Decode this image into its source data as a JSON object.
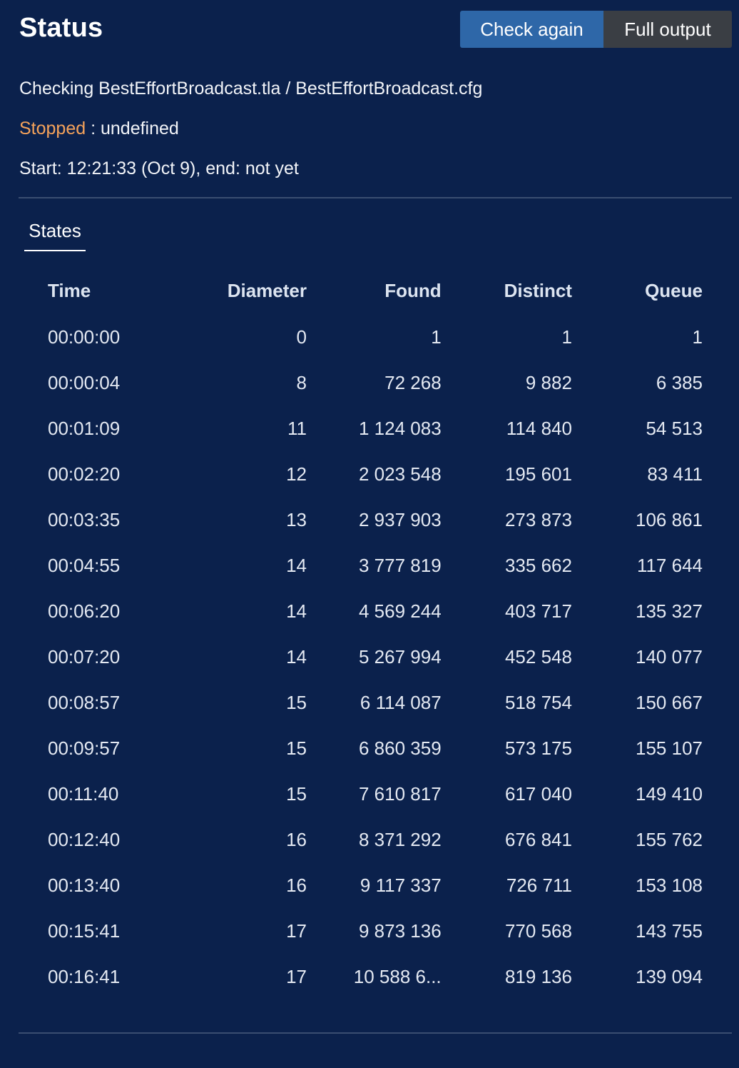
{
  "header": {
    "title": "Status",
    "check_again_label": "Check again",
    "full_output_label": "Full output"
  },
  "info": {
    "checking": "Checking BestEffortBroadcast.tla / BestEffortBroadcast.cfg",
    "status_label": "Stopped",
    "status_value": " : undefined",
    "timing": "Start: 12:21:33 (Oct 9), end: not yet"
  },
  "tabs": [
    {
      "label": "States",
      "active": true
    }
  ],
  "table": {
    "headers": {
      "time": "Time",
      "diameter": "Diameter",
      "found": "Found",
      "distinct": "Distinct",
      "queue": "Queue"
    },
    "rows": [
      [
        "00:00:00",
        "0",
        "1",
        "1",
        "1"
      ],
      [
        "00:00:04",
        "8",
        "72 268",
        "9 882",
        "6 385"
      ],
      [
        "00:01:09",
        "11",
        "1 124 083",
        "114 840",
        "54 513"
      ],
      [
        "00:02:20",
        "12",
        "2 023 548",
        "195 601",
        "83 411"
      ],
      [
        "00:03:35",
        "13",
        "2 937 903",
        "273 873",
        "106 861"
      ],
      [
        "00:04:55",
        "14",
        "3 777 819",
        "335 662",
        "117 644"
      ],
      [
        "00:06:20",
        "14",
        "4 569 244",
        "403 717",
        "135 327"
      ],
      [
        "00:07:20",
        "14",
        "5 267 994",
        "452 548",
        "140 077"
      ],
      [
        "00:08:57",
        "15",
        "6 114 087",
        "518 754",
        "150 667"
      ],
      [
        "00:09:57",
        "15",
        "6 860 359",
        "573 175",
        "155 107"
      ],
      [
        "00:11:40",
        "15",
        "7 610 817",
        "617 040",
        "149 410"
      ],
      [
        "00:12:40",
        "16",
        "8 371 292",
        "676 841",
        "155 762"
      ],
      [
        "00:13:40",
        "16",
        "9 117 337",
        "726 711",
        "153 108"
      ],
      [
        "00:15:41",
        "17",
        "9 873 136",
        "770 568",
        "143 755"
      ],
      [
        "00:16:41",
        "17",
        "10 588 6...",
        "819 136",
        "139 094"
      ]
    ]
  },
  "colors": {
    "background": "#0b214c",
    "primary_button": "#2e67a8",
    "secondary_button": "#3a3e44",
    "stopped": "#f5a25a"
  }
}
